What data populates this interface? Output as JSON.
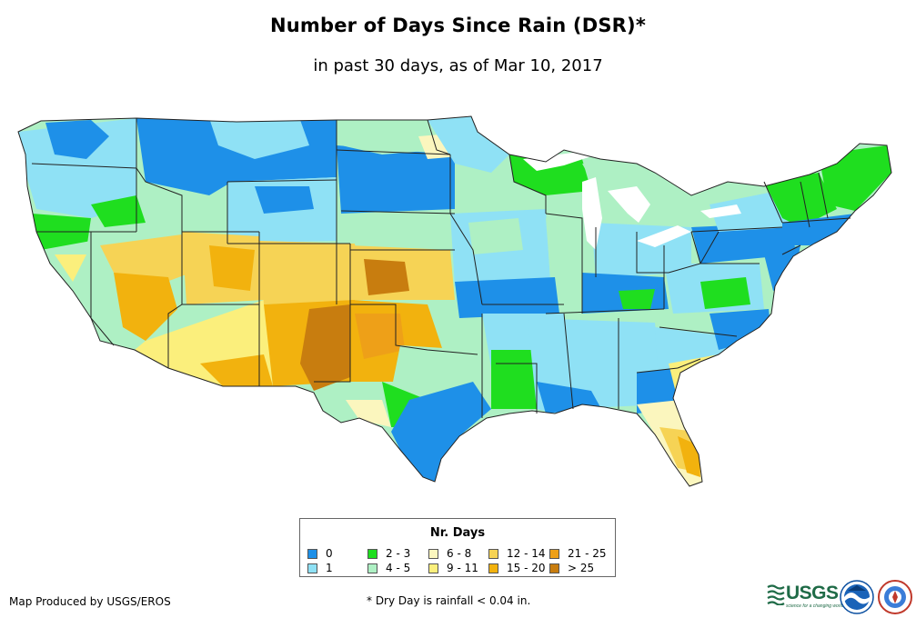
{
  "header": {
    "title": "Number of Days Since Rain (DSR)*",
    "subtitle": "in past 30 days, as of Mar 10, 2017"
  },
  "legend": {
    "title": "Nr. Days",
    "items": [
      {
        "label": "0",
        "color": "#1e90e8"
      },
      {
        "label": "1",
        "color": "#8fe1f5"
      },
      {
        "label": "2 - 3",
        "color": "#1fde1f"
      },
      {
        "label": "4 - 5",
        "color": "#aef0c4"
      },
      {
        "label": "6 - 8",
        "color": "#fbf6be"
      },
      {
        "label": "9 - 11",
        "color": "#fbef7c"
      },
      {
        "label": "12 - 14",
        "color": "#f6d355"
      },
      {
        "label": "15 - 20",
        "color": "#f2b20e"
      },
      {
        "label": "21 - 25",
        "color": "#eea018"
      },
      {
        "label": "> 25",
        "color": "#c87d0f"
      }
    ]
  },
  "footer": {
    "credit": "Map Produced by USGS/EROS",
    "footnote": "* Dry Day is rainfall < 0.04 in.",
    "usgs_logo_text": "USGS",
    "usgs_tagline": "science for a changing world"
  },
  "icons": [
    "usgs-logo",
    "noaa-logo",
    "nws-logo"
  ]
}
